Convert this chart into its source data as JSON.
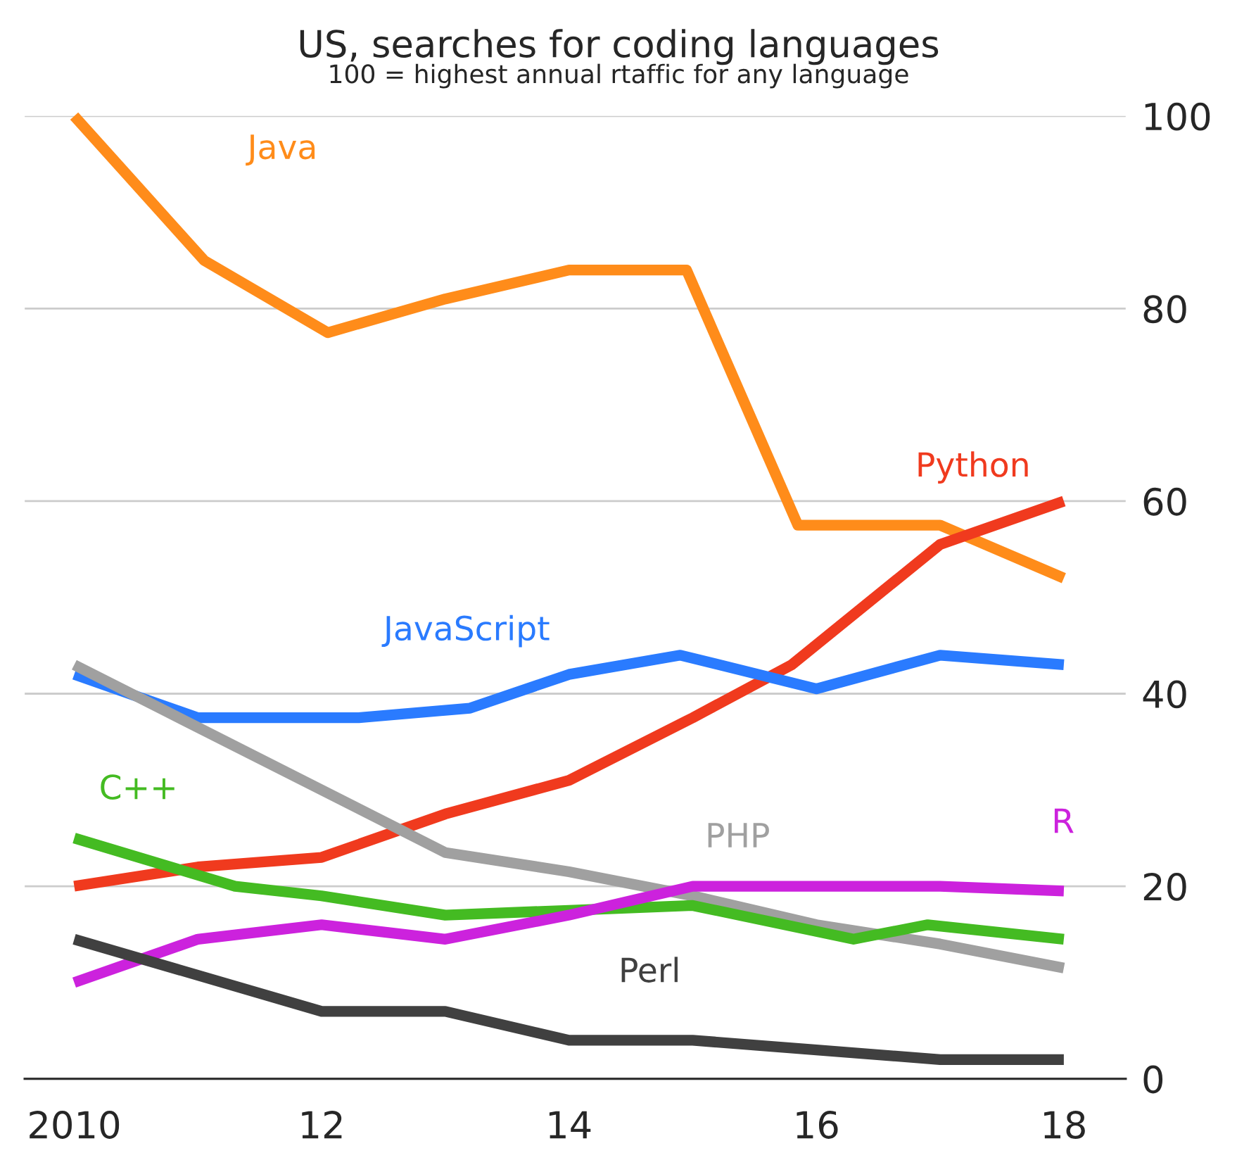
{
  "chart_data": {
    "type": "line",
    "title": "US, searches for coding languages",
    "subtitle": "100 = highest annual rtaffic for any language",
    "series": [
      {
        "name": "Java",
        "color": "#ff8c1a",
        "x": [
          2010,
          2011.05,
          2012.05,
          2013,
          2014,
          2014.95,
          2015.85,
          2017,
          2018
        ],
        "values": [
          100,
          85,
          77.5,
          81,
          84,
          84,
          57.5,
          57.5,
          52
        ]
      },
      {
        "name": "Python",
        "color": "#f03a1e",
        "x": [
          2010,
          2011,
          2012,
          2013,
          2014,
          2015,
          2015.8,
          2017,
          2018
        ],
        "values": [
          20,
          22,
          23,
          27.5,
          31,
          37.5,
          43,
          55.5,
          60
        ]
      },
      {
        "name": "JavaScript",
        "color": "#2a7bff",
        "x": [
          2010,
          2011,
          2012.3,
          2013.2,
          2014,
          2014.9,
          2016,
          2017,
          2018
        ],
        "values": [
          42,
          37.5,
          37.5,
          38.5,
          42,
          44,
          40.5,
          44,
          43
        ]
      },
      {
        "name": "PHP",
        "color": "#a0a0a0",
        "x": [
          2010,
          2012,
          2013,
          2014,
          2015,
          2016,
          2017,
          2018
        ],
        "values": [
          43,
          30,
          23.5,
          21.5,
          19,
          16,
          14,
          11.5
        ]
      },
      {
        "name": "C++",
        "color": "#44bb22",
        "x": [
          2010,
          2011.3,
          2012,
          2013,
          2014,
          2015,
          2016.3,
          2016.9,
          2018
        ],
        "values": [
          25,
          20,
          19,
          17,
          17.5,
          18,
          14.5,
          16,
          14.5
        ]
      },
      {
        "name": "R",
        "color": "#cc22dd",
        "x": [
          2010,
          2011,
          2012,
          2013,
          2014,
          2015,
          2016,
          2017,
          2018
        ],
        "values": [
          10,
          14.5,
          16,
          14.5,
          17,
          20,
          20,
          20,
          19.5
        ]
      },
      {
        "name": "Perl",
        "color": "#404040",
        "x": [
          2010,
          2012,
          2013,
          2014,
          2015,
          2016,
          2017,
          2018
        ],
        "values": [
          14.5,
          7,
          7,
          4,
          4,
          3,
          2,
          2
        ]
      }
    ],
    "xlim": [
      2009.6,
      2018.5
    ],
    "ylim": [
      0,
      100
    ],
    "xticks": [
      {
        "value": 2010,
        "label": "2010"
      },
      {
        "value": 2012,
        "label": "12"
      },
      {
        "value": 2014,
        "label": "14"
      },
      {
        "value": 2016,
        "label": "16"
      },
      {
        "value": 2018,
        "label": "18"
      }
    ],
    "yticks": [
      0,
      20,
      40,
      60,
      80,
      100
    ],
    "grid": "y",
    "legend": false,
    "marker": "none",
    "line_style": "solid"
  }
}
